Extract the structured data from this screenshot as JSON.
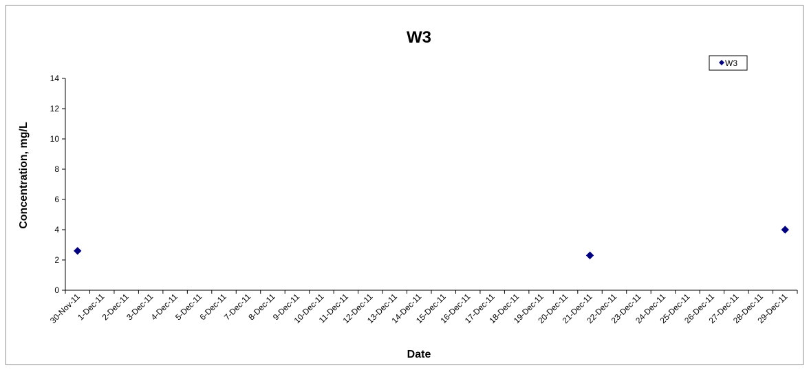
{
  "chart_data": {
    "type": "scatter",
    "title": "W3",
    "xlabel": "Date",
    "ylabel": "Concentration, mg/L",
    "x_categories": [
      "30-Nov-11",
      "1-Dec-11",
      "2-Dec-11",
      "3-Dec-11",
      "4-Dec-11",
      "5-Dec-11",
      "6-Dec-11",
      "7-Dec-11",
      "8-Dec-11",
      "9-Dec-11",
      "10-Dec-11",
      "11-Dec-11",
      "12-Dec-11",
      "13-Dec-11",
      "14-Dec-11",
      "15-Dec-11",
      "16-Dec-11",
      "17-Dec-11",
      "18-Dec-11",
      "19-Dec-11",
      "20-Dec-11",
      "21-Dec-11",
      "22-Dec-11",
      "23-Dec-11",
      "24-Dec-11",
      "25-Dec-11",
      "26-Dec-11",
      "27-Dec-11",
      "28-Dec-11",
      "29-Dec-11"
    ],
    "ylim": [
      0,
      14
    ],
    "yticks": [
      0,
      2,
      4,
      6,
      8,
      10,
      12,
      14
    ],
    "grid": false,
    "legend_position": "top-right",
    "series": [
      {
        "name": "W3",
        "color": "#000080",
        "marker": "diamond",
        "points": [
          {
            "x": "30-Nov-11",
            "y": 2.6
          },
          {
            "x": "21-Dec-11",
            "y": 2.3
          },
          {
            "x": "29-Dec-11",
            "y": 4.0
          }
        ]
      }
    ]
  }
}
